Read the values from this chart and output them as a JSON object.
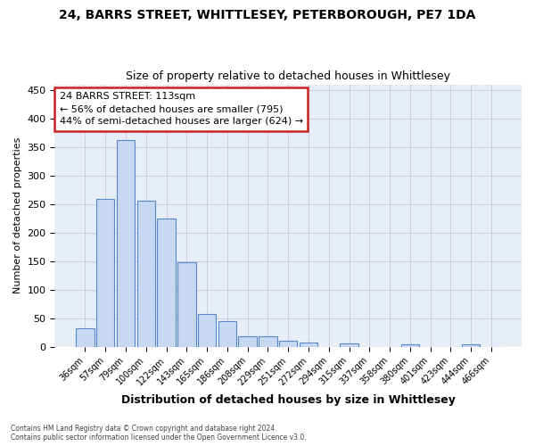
{
  "title": "24, BARRS STREET, WHITTLESEY, PETERBOROUGH, PE7 1DA",
  "subtitle": "Size of property relative to detached houses in Whittlesey",
  "xlabel": "Distribution of detached houses by size in Whittlesey",
  "ylabel": "Number of detached properties",
  "categories": [
    "36sqm",
    "57sqm",
    "79sqm",
    "100sqm",
    "122sqm",
    "143sqm",
    "165sqm",
    "186sqm",
    "208sqm",
    "229sqm",
    "251sqm",
    "272sqm",
    "294sqm",
    "315sqm",
    "337sqm",
    "358sqm",
    "380sqm",
    "401sqm",
    "423sqm",
    "444sqm",
    "466sqm"
  ],
  "values": [
    32,
    260,
    362,
    256,
    225,
    148,
    57,
    45,
    18,
    18,
    11,
    7,
    0,
    6,
    0,
    0,
    4,
    0,
    0,
    4,
    0
  ],
  "bar_color": "#c8d8f0",
  "bar_edge_color": "#5588cc",
  "annotation_text": "24 BARRS STREET: 113sqm\n← 56% of detached houses are smaller (795)\n44% of semi-detached houses are larger (624) →",
  "annotation_box_facecolor": "#ffffff",
  "annotation_box_edgecolor": "#cc2222",
  "footnote": "Contains HM Land Registry data © Crown copyright and database right 2024.\nContains public sector information licensed under the Open Government Licence v3.0.",
  "ylim": [
    0,
    460
  ],
  "yticks": [
    0,
    50,
    100,
    150,
    200,
    250,
    300,
    350,
    400,
    450
  ],
  "background_color": "#ffffff",
  "plot_background_color": "#e8eef8",
  "grid_color": "#ccccdd",
  "title_fontsize": 10,
  "subtitle_fontsize": 9,
  "ylabel_fontsize": 8,
  "xlabel_fontsize": 9
}
